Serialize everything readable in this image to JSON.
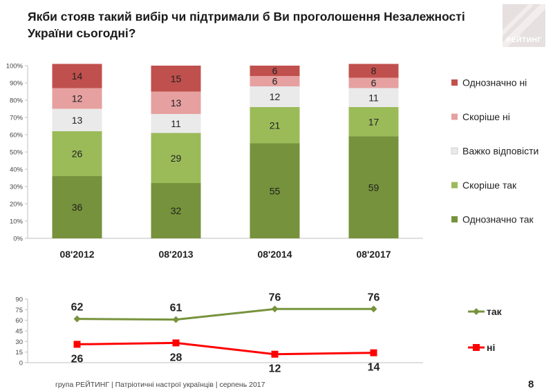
{
  "title": "Якби стояв такий вибір чи підтримали б Ви проголошення Незалежності України сьогодні?",
  "logo": {
    "text": "РЕЙТИНГ"
  },
  "footer": "група РЕЙТИНГ  | Патріотичні настрої українців |  серпень 2017",
  "page_number": "8",
  "chart_data": [
    {
      "type": "bar",
      "stacked": true,
      "categories": [
        "08'2012",
        "08'2013",
        "08'2014",
        "08'2017"
      ],
      "series": [
        {
          "name": "Однозначно так",
          "color": "#76923c",
          "values": [
            36,
            32,
            55,
            59
          ]
        },
        {
          "name": "Скоріше так",
          "color": "#9bbb59",
          "values": [
            26,
            29,
            21,
            17
          ]
        },
        {
          "name": "Важко відповісти",
          "color": "#eaeaea",
          "values": [
            13,
            11,
            12,
            11
          ]
        },
        {
          "name": "Скоріше ні",
          "color": "#e6a0a0",
          "values": [
            12,
            13,
            6,
            6
          ]
        },
        {
          "name": "Однозначно ні",
          "color": "#c0504d",
          "values": [
            14,
            15,
            6,
            8
          ]
        }
      ],
      "yticks": [
        "0%",
        "10%",
        "20%",
        "30%",
        "40%",
        "50%",
        "60%",
        "70%",
        "80%",
        "90%",
        "100%"
      ],
      "ylim": [
        0,
        100
      ],
      "legend_position": "right",
      "legend_order": "top-to-bottom reversed"
    },
    {
      "type": "line",
      "categories": [
        "08'2012",
        "08'2013",
        "08'2014",
        "08'2017"
      ],
      "series": [
        {
          "name": "так",
          "color": "#77933c",
          "marker": "diamond",
          "values": [
            62,
            61,
            76,
            76
          ]
        },
        {
          "name": "ні",
          "color": "#ff0000",
          "marker": "square",
          "values": [
            26,
            28,
            12,
            14
          ]
        }
      ],
      "yticks": [
        "0",
        "15",
        "30",
        "45",
        "60",
        "75",
        "90"
      ],
      "ylim": [
        0,
        90
      ],
      "legend_position": "right"
    }
  ]
}
